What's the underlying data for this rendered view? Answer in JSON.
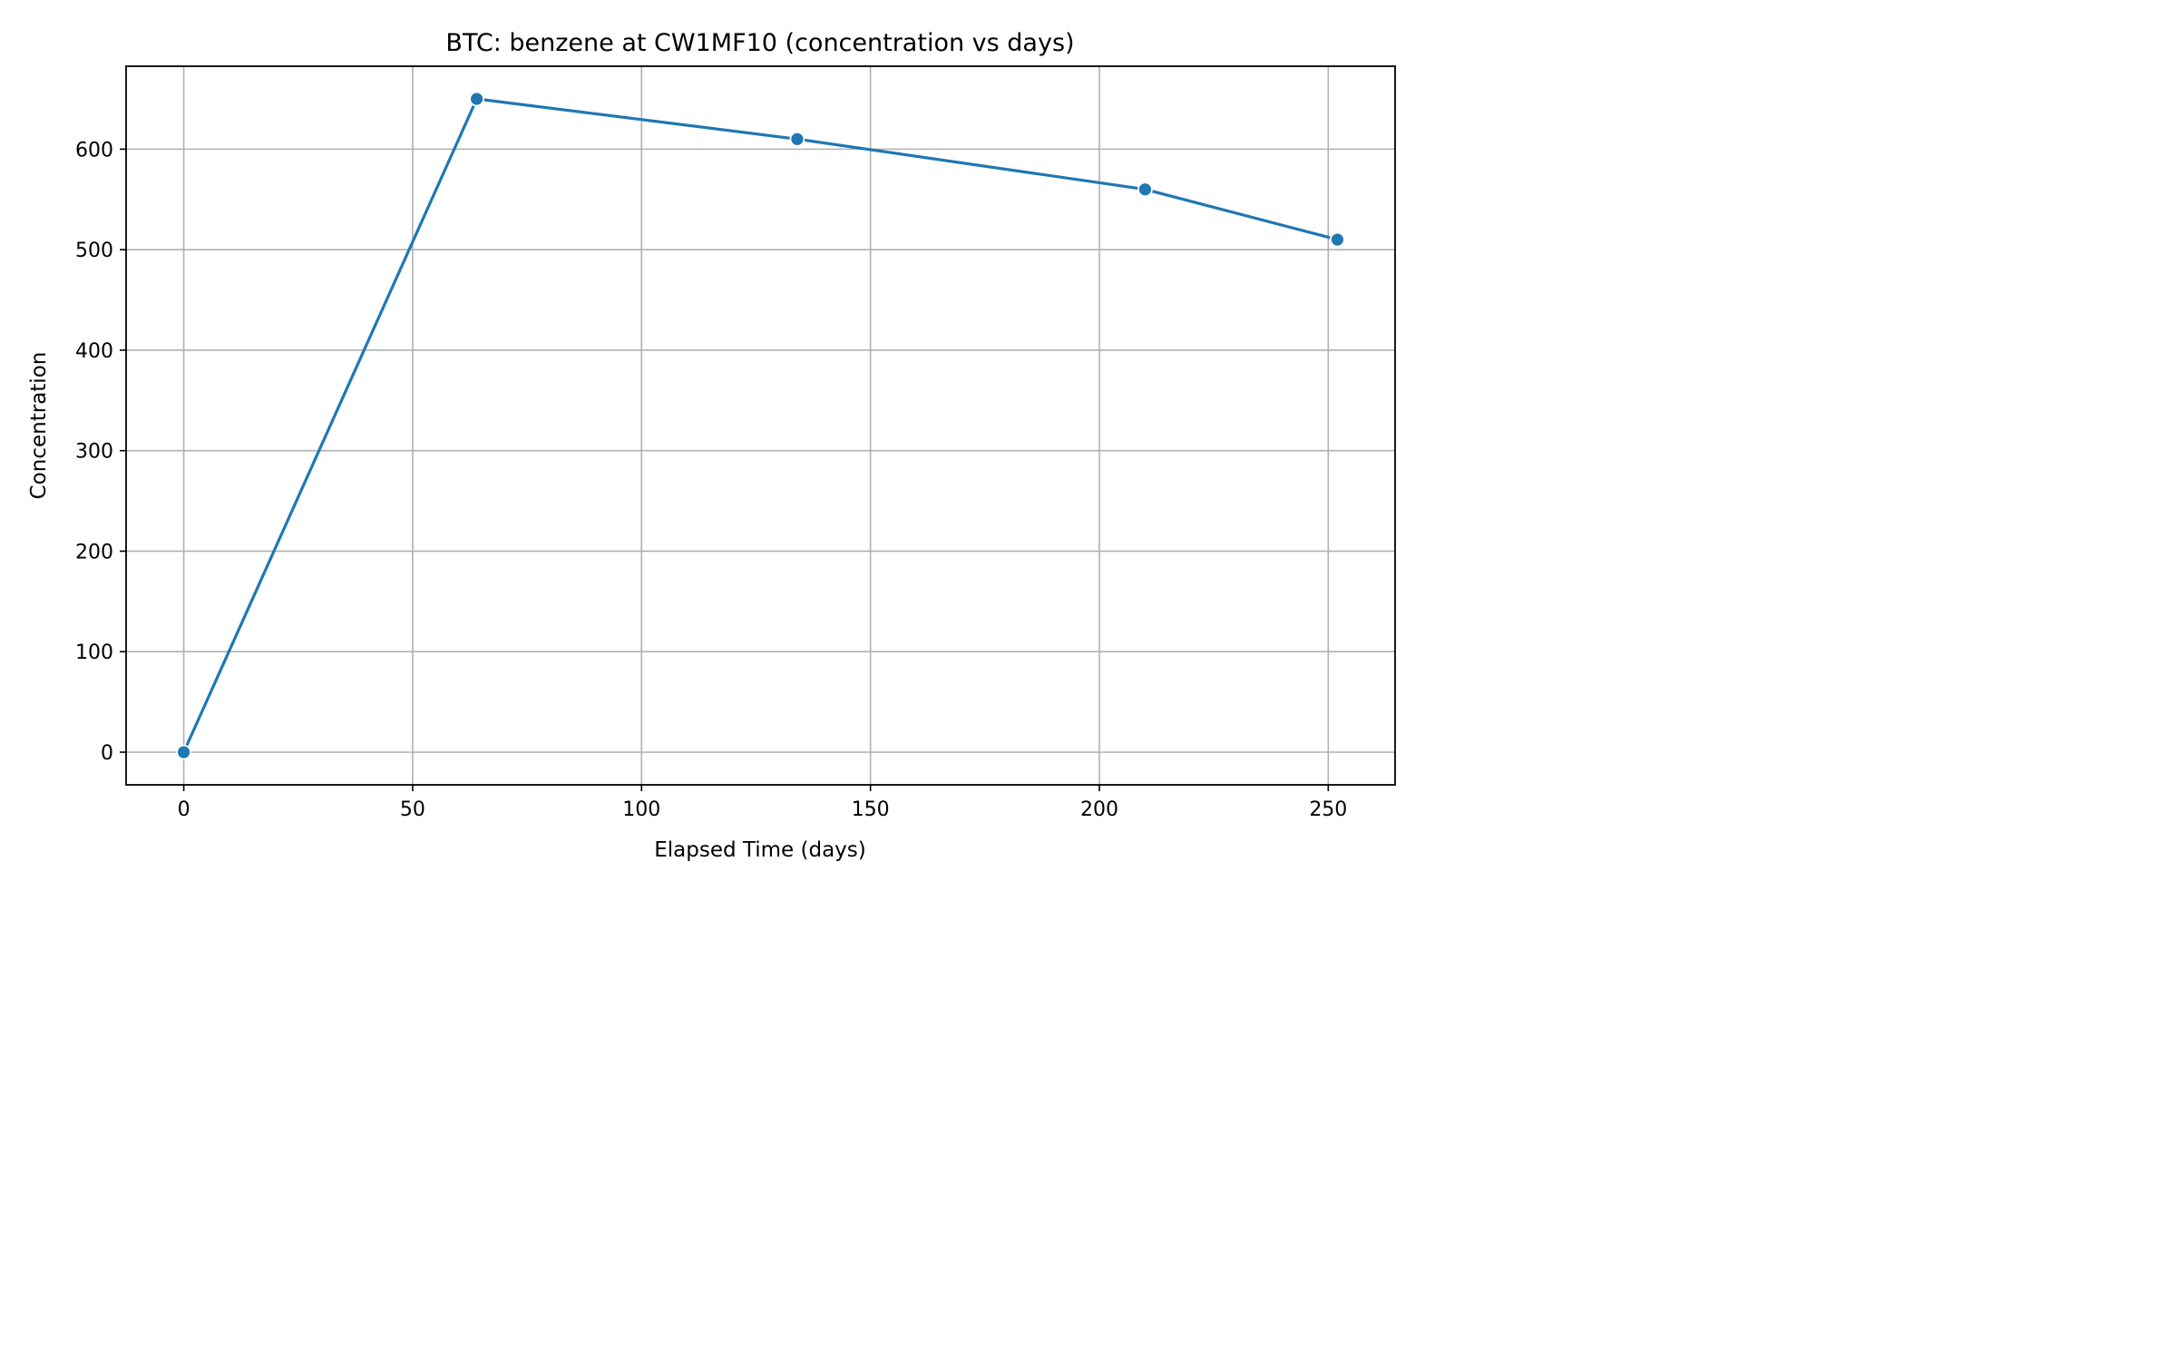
{
  "chart_data": {
    "type": "line",
    "title": "BTC: benzene at CW1MF10 (concentration vs days)",
    "xlabel": "Elapsed Time (days)",
    "ylabel": "Concentration",
    "xlim": [
      -12.6,
      264.6
    ],
    "ylim": [
      -32.5,
      682.5
    ],
    "xticks": [
      0,
      50,
      100,
      150,
      200,
      250
    ],
    "yticks": [
      0,
      100,
      200,
      300,
      400,
      500,
      600
    ],
    "grid": true,
    "series": [
      {
        "color": "#1f77b4",
        "x": [
          0,
          64,
          134,
          210,
          252
        ],
        "y": [
          0,
          650,
          610,
          560,
          510
        ]
      }
    ]
  }
}
